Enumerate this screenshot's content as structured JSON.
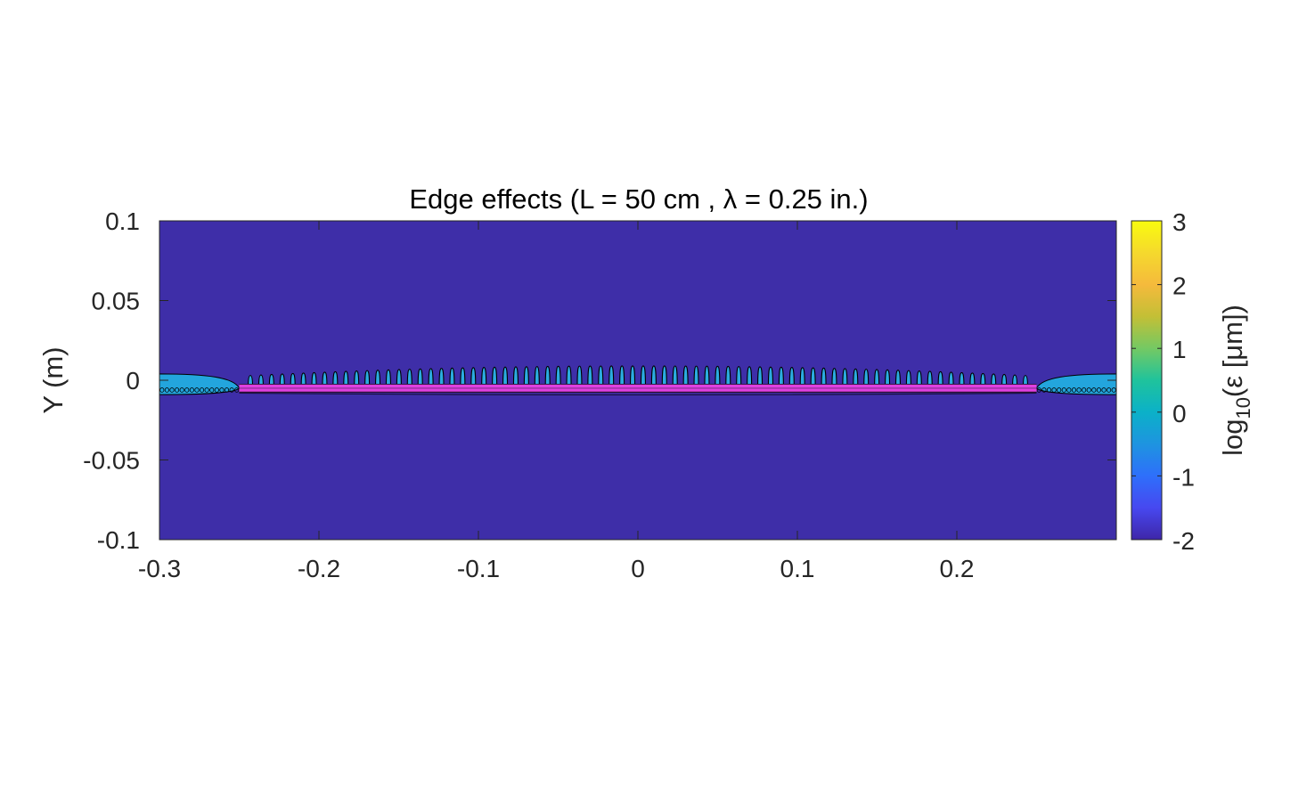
{
  "chart_data": {
    "type": "heatmap",
    "title": "Edge effects (L = 50 cm , λ = 0.25 in.)",
    "xlabel": "",
    "ylabel": "Y (m)",
    "xlim": [
      -0.3,
      0.3
    ],
    "ylim": [
      -0.1,
      0.1
    ],
    "x_ticks": [
      -0.3,
      -0.2,
      -0.1,
      0,
      0.1,
      0.2
    ],
    "x_tick_labels": [
      "-0.3",
      "-0.2",
      "-0.1",
      "0",
      "0.1",
      "0.2"
    ],
    "y_ticks": [
      0.1,
      0.05,
      0,
      -0.05,
      -0.1
    ],
    "y_tick_labels": [
      "0.1",
      "0.05",
      "0",
      "-0.05",
      "-0.1"
    ],
    "colorbar": {
      "label_prefix": "log",
      "label_sub": "10",
      "label_suffix": "(ε [μm])",
      "range": [
        -2,
        3
      ],
      "ticks": [
        3,
        2,
        1,
        0,
        -1,
        -2
      ],
      "tick_labels": [
        "3",
        "2",
        "1",
        "0",
        "-1",
        "-2"
      ],
      "colormap": "parula"
    },
    "background_level": -2,
    "strip": {
      "x_range": [
        -0.25,
        0.25
      ],
      "y_center": -0.005,
      "half_thickness": 0.0025,
      "color": "#e040e0"
    },
    "lobes": {
      "count": 74,
      "x_range": [
        -0.243,
        0.243
      ],
      "base_y": -0.004,
      "top_y_center": 0.009,
      "top_y_edge": 0.003,
      "level": 0
    },
    "edge_regions": [
      {
        "side": "left",
        "x_range": [
          -0.3,
          -0.25
        ],
        "y_top": 0.004,
        "y_bottom": -0.009,
        "level": 0
      },
      {
        "side": "right",
        "x_range": [
          0.25,
          0.3
        ],
        "y_top": 0.004,
        "y_bottom": -0.009,
        "level": 0
      }
    ],
    "grid": false,
    "colors": {
      "background": "#3e2ea8",
      "lobe_fill": "#2bace0",
      "edge_fill": "#23a5dd",
      "contour": "#000000"
    }
  }
}
